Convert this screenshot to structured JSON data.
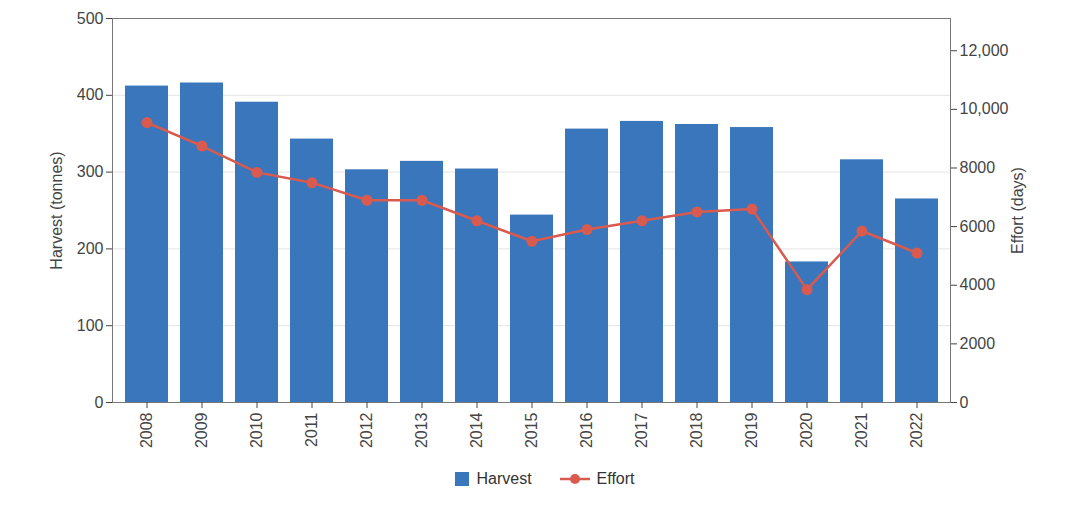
{
  "chart_data": {
    "type": "bar",
    "categories": [
      "2008",
      "2009",
      "2010",
      "2011",
      "2012",
      "2013",
      "2014",
      "2015",
      "2016",
      "2017",
      "2018",
      "2019",
      "2020",
      "2021",
      "2022"
    ],
    "series": [
      {
        "name": "Harvest",
        "type": "bar",
        "color": "#3a76bc",
        "values": [
          412,
          416,
          391,
          343,
          303,
          314,
          304,
          244,
          356,
          366,
          362,
          358,
          183,
          316,
          265
        ]
      },
      {
        "name": "Effort",
        "type": "line",
        "color": "#d95a4e",
        "marker": "circle",
        "axis": "y2",
        "values": [
          9550,
          8750,
          7850,
          7500,
          6900,
          6900,
          6200,
          5500,
          5900,
          6200,
          6500,
          6600,
          3850,
          5850,
          5100
        ]
      }
    ],
    "ylabel": "Harvest (tonnes)",
    "y2label": "Effort (days)",
    "ylim": [
      0,
      500
    ],
    "yticks": [
      0,
      100,
      200,
      300,
      400,
      500
    ],
    "y2lim": [
      0,
      13100
    ],
    "y2ticks": [
      0,
      2000,
      4000,
      6000,
      8000,
      {
        "value": 10000,
        "label": "10,000"
      },
      {
        "value": 12000,
        "label": "12,000"
      }
    ],
    "grid": true,
    "legend": "bottom"
  }
}
